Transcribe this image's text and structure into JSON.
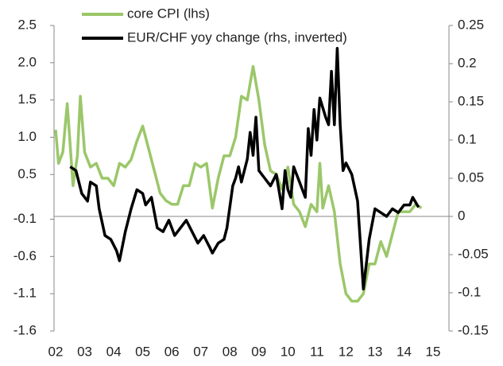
{
  "chart_data": {
    "type": "line",
    "xlim": [
      2,
      15
    ],
    "xticks": [
      {
        "value": 2,
        "label": "02"
      },
      {
        "value": 3,
        "label": "03"
      },
      {
        "value": 4,
        "label": "04"
      },
      {
        "value": 5,
        "label": "05"
      },
      {
        "value": 6,
        "label": "06"
      },
      {
        "value": 7,
        "label": "07"
      },
      {
        "value": 8,
        "label": "08"
      },
      {
        "value": 9,
        "label": "09"
      },
      10,
      11,
      12,
      13,
      14,
      15
    ],
    "ylim": [
      -1.6,
      2.5
    ],
    "yticks": [
      2.5,
      {
        "value": 2,
        "label": "2.0"
      },
      1.5,
      {
        "value": 1,
        "label": "1.0"
      },
      0.5,
      -0.1,
      -0.6,
      -1.1,
      -1.6
    ],
    "y2lim": [
      -0.15,
      0.25
    ],
    "y2ticks": [
      0.25,
      0.2,
      0.15,
      0.1,
      0.05,
      0,
      -0.05,
      -0.1,
      -0.15
    ],
    "series": [
      {
        "name": "core CPI (lhs)",
        "color": "#9bc76a",
        "axis": "y",
        "x": [
          2.0,
          2.1,
          2.25,
          2.4,
          2.5,
          2.6,
          2.75,
          2.85,
          3.0,
          3.2,
          3.4,
          3.6,
          3.8,
          4.0,
          4.2,
          4.4,
          4.6,
          4.8,
          5.0,
          5.2,
          5.4,
          5.6,
          5.8,
          6.0,
          6.2,
          6.4,
          6.6,
          6.8,
          7.0,
          7.2,
          7.4,
          7.6,
          7.8,
          8.0,
          8.2,
          8.4,
          8.6,
          8.8,
          9.0,
          9.2,
          9.4,
          9.6,
          9.8,
          10.0,
          10.2,
          10.4,
          10.6,
          10.8,
          11.0,
          11.1,
          11.2,
          11.4,
          11.6,
          11.8,
          12.0,
          12.2,
          12.4,
          12.6,
          12.8,
          13.0,
          13.2,
          13.4,
          13.6,
          13.8,
          14.0,
          14.2,
          14.4,
          14.6
        ],
        "values": [
          1.1,
          0.65,
          0.8,
          1.45,
          0.9,
          0.35,
          0.75,
          1.55,
          0.8,
          0.6,
          0.65,
          0.45,
          0.45,
          0.35,
          0.65,
          0.6,
          0.7,
          0.95,
          1.15,
          0.85,
          0.55,
          0.25,
          0.15,
          0.1,
          0.1,
          0.35,
          0.35,
          0.65,
          0.6,
          0.65,
          0.05,
          0.45,
          0.75,
          0.75,
          1.0,
          1.55,
          1.5,
          1.95,
          1.5,
          0.9,
          0.55,
          0.5,
          0.3,
          0.6,
          0.1,
          0.0,
          -0.2,
          0.1,
          0.0,
          0.65,
          0.05,
          0.35,
          0.0,
          -0.7,
          -1.1,
          -1.2,
          -1.2,
          -1.1,
          -0.7,
          -0.7,
          -0.4,
          -0.6,
          -0.3,
          0.0,
          0.0,
          0.0,
          0.1,
          0.05
        ]
      },
      {
        "name": "EUR/CHF yoy change (rhs, inverted)",
        "color": "#000000",
        "axis": "y2",
        "x": [
          2.5,
          2.7,
          2.9,
          3.1,
          3.2,
          3.4,
          3.5,
          3.7,
          3.9,
          4.1,
          4.2,
          4.4,
          4.6,
          4.8,
          5.0,
          5.1,
          5.3,
          5.5,
          5.7,
          5.9,
          6.1,
          6.3,
          6.5,
          6.7,
          6.9,
          7.1,
          7.3,
          7.4,
          7.6,
          7.8,
          7.9,
          8.1,
          8.2,
          8.3,
          8.4,
          8.5,
          8.6,
          8.7,
          8.8,
          8.9,
          9.0,
          9.2,
          9.4,
          9.6,
          9.8,
          9.9,
          10.0,
          10.1,
          10.2,
          10.4,
          10.6,
          10.7,
          10.8,
          10.9,
          11.0,
          11.1,
          11.3,
          11.4,
          11.5,
          11.6,
          11.7,
          11.8,
          11.9,
          12.0,
          12.2,
          12.4,
          12.6,
          12.8,
          13.0,
          13.2,
          13.4,
          13.6,
          13.8,
          14.0,
          14.2,
          14.3,
          14.5
        ],
        "values": [
          0.065,
          0.06,
          0.03,
          0.02,
          0.045,
          0.04,
          0.01,
          -0.025,
          -0.03,
          -0.045,
          -0.058,
          -0.02,
          0.01,
          0.035,
          0.03,
          0.015,
          0.025,
          -0.015,
          -0.02,
          -0.005,
          -0.025,
          -0.015,
          -0.005,
          -0.02,
          -0.035,
          -0.025,
          -0.04,
          -0.048,
          -0.035,
          -0.03,
          -0.015,
          0.04,
          0.05,
          0.065,
          0.045,
          0.06,
          0.075,
          0.11,
          0.08,
          0.13,
          0.06,
          0.05,
          0.04,
          0.055,
          0.01,
          0.06,
          0.035,
          0.025,
          0.065,
          0.045,
          0.025,
          0.115,
          0.08,
          0.14,
          0.1,
          0.155,
          0.13,
          0.12,
          0.19,
          0.12,
          0.22,
          0.12,
          0.06,
          0.07,
          0.055,
          0.02,
          -0.095,
          -0.03,
          0.01,
          0.005,
          0.0,
          0.01,
          0.005,
          0.015,
          0.015,
          0.025,
          0.012
        ]
      }
    ]
  }
}
